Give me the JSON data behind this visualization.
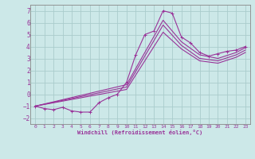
{
  "xlabel": "Windchill (Refroidissement éolien,°C)",
  "bg_color": "#cce8e8",
  "grid_color": "#aacccc",
  "line_color": "#993399",
  "spine_color": "#888888",
  "xlim": [
    -0.5,
    23.5
  ],
  "ylim": [
    -2.5,
    7.5
  ],
  "xticks": [
    0,
    1,
    2,
    3,
    4,
    5,
    6,
    7,
    8,
    9,
    10,
    11,
    12,
    13,
    14,
    15,
    16,
    17,
    18,
    19,
    20,
    21,
    22,
    23
  ],
  "yticks": [
    -2,
    -1,
    0,
    1,
    2,
    3,
    4,
    5,
    6,
    7
  ],
  "series": [
    {
      "x": [
        0,
        1,
        2,
        3,
        4,
        5,
        6,
        7,
        8,
        9,
        10,
        11,
        12,
        13,
        14,
        15,
        16,
        17,
        18,
        19,
        20,
        21,
        22,
        23
      ],
      "y": [
        -1.0,
        -1.2,
        -1.3,
        -1.1,
        -1.4,
        -1.5,
        -1.5,
        -0.7,
        -0.3,
        0.0,
        1.0,
        3.3,
        5.0,
        5.3,
        7.0,
        6.8,
        4.8,
        4.3,
        3.5,
        3.2,
        3.4,
        3.6,
        3.7,
        4.0
      ],
      "marker": true
    },
    {
      "x": [
        0,
        10,
        14,
        16,
        18,
        20,
        22,
        23
      ],
      "y": [
        -1.0,
        0.8,
        6.2,
        4.4,
        3.3,
        3.0,
        3.5,
        3.9
      ],
      "marker": false
    },
    {
      "x": [
        0,
        10,
        14,
        16,
        18,
        20,
        22,
        23
      ],
      "y": [
        -1.0,
        0.6,
        5.8,
        4.1,
        3.0,
        2.8,
        3.3,
        3.7
      ],
      "marker": false
    },
    {
      "x": [
        0,
        10,
        14,
        16,
        18,
        20,
        22,
        23
      ],
      "y": [
        -1.0,
        0.4,
        5.2,
        3.8,
        2.8,
        2.6,
        3.1,
        3.5
      ],
      "marker": false
    }
  ]
}
